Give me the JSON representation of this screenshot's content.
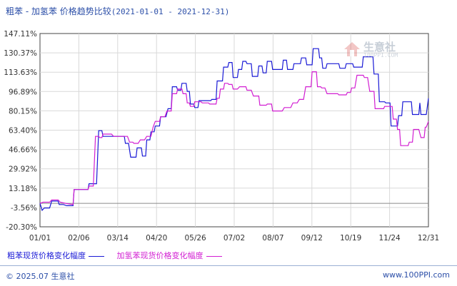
{
  "header": {
    "title": "粗苯 - 加氢苯 价格趋势比较",
    "date_range": "(2021-01-01 - 2021-12-31)"
  },
  "watermark": {
    "name": "生意社",
    "url": "100PPI.COM"
  },
  "footer": {
    "copyright": "© 2025.07 生意社",
    "site": "www.100PPI.com"
  },
  "colors": {
    "series1": "#1a1ad6",
    "series2": "#d21ed2",
    "grid": "#d9d9d9",
    "axis": "#444444",
    "zero": "#8a8a8a"
  },
  "chart_data": {
    "type": "line",
    "title": "粗苯 - 加氢苯 价格趋势比较",
    "x_tick_labels": [
      "01/01",
      "02/06",
      "03/14",
      "04/20",
      "05/26",
      "07/02",
      "08/07",
      "09/12",
      "10/19",
      "11/24",
      "12/31"
    ],
    "y_tick_labels": [
      "147.11%",
      "130.37%",
      "113.63%",
      "96.89%",
      "80.15%",
      "63.40%",
      "46.66%",
      "29.92%",
      "13.18%",
      "-3.56%",
      "-20.30%"
    ],
    "ylim": [
      -20.3,
      147.11
    ],
    "zero_line": 0,
    "grid": true,
    "legend_position": "bottom",
    "x_unit": "day-of-year 2021",
    "series": [
      {
        "name": "粗苯现货价格变化幅度",
        "color": "#1a1ad6",
        "points": [
          [
            1,
            0
          ],
          [
            3,
            -6
          ],
          [
            5,
            -4
          ],
          [
            10,
            -4
          ],
          [
            12,
            2
          ],
          [
            18,
            2
          ],
          [
            19,
            -1
          ],
          [
            23,
            -1
          ],
          [
            26,
            -2
          ],
          [
            32,
            -2
          ],
          [
            33,
            12
          ],
          [
            46,
            12
          ],
          [
            47,
            17
          ],
          [
            54,
            17
          ],
          [
            56,
            63
          ],
          [
            59,
            63
          ],
          [
            60,
            58
          ],
          [
            80,
            58
          ],
          [
            81,
            52
          ],
          [
            84,
            52
          ],
          [
            86,
            40
          ],
          [
            91,
            40
          ],
          [
            92,
            48
          ],
          [
            96,
            48
          ],
          [
            97,
            41
          ],
          [
            100,
            41
          ],
          [
            101,
            55
          ],
          [
            104,
            55
          ],
          [
            105,
            62
          ],
          [
            108,
            62
          ],
          [
            109,
            67
          ],
          [
            113,
            67
          ],
          [
            114,
            75
          ],
          [
            119,
            75
          ],
          [
            121,
            82
          ],
          [
            124,
            82
          ],
          [
            125,
            101
          ],
          [
            129,
            101
          ],
          [
            130,
            98
          ],
          [
            133,
            98
          ],
          [
            134,
            104
          ],
          [
            138,
            104
          ],
          [
            139,
            97
          ],
          [
            141,
            97
          ],
          [
            142,
            86
          ],
          [
            145,
            86
          ],
          [
            146,
            83
          ],
          [
            149,
            83
          ],
          [
            150,
            89
          ],
          [
            161,
            89
          ],
          [
            162,
            90
          ],
          [
            166,
            90
          ],
          [
            167,
            106
          ],
          [
            172,
            106
          ],
          [
            173,
            118
          ],
          [
            177,
            118
          ],
          [
            178,
            122
          ],
          [
            181,
            122
          ],
          [
            182,
            109
          ],
          [
            186,
            109
          ],
          [
            187,
            116
          ],
          [
            190,
            116
          ],
          [
            191,
            123
          ],
          [
            194,
            123
          ],
          [
            195,
            121
          ],
          [
            199,
            121
          ],
          [
            200,
            110
          ],
          [
            205,
            110
          ],
          [
            206,
            119
          ],
          [
            209,
            119
          ],
          [
            210,
            113
          ],
          [
            213,
            113
          ],
          [
            214,
            123
          ],
          [
            218,
            123
          ],
          [
            219,
            116
          ],
          [
            228,
            116
          ],
          [
            229,
            124
          ],
          [
            232,
            124
          ],
          [
            233,
            116
          ],
          [
            238,
            116
          ],
          [
            239,
            121
          ],
          [
            245,
            121
          ],
          [
            246,
            126
          ],
          [
            250,
            126
          ],
          [
            251,
            120
          ],
          [
            256,
            120
          ],
          [
            257,
            134
          ],
          [
            262,
            134
          ],
          [
            263,
            126
          ],
          [
            265,
            126
          ],
          [
            266,
            117
          ],
          [
            269,
            117
          ],
          [
            270,
            121
          ],
          [
            281,
            121
          ],
          [
            282,
            117
          ],
          [
            287,
            117
          ],
          [
            288,
            121
          ],
          [
            294,
            121
          ],
          [
            295,
            118
          ],
          [
            303,
            118
          ],
          [
            304,
            127
          ],
          [
            313,
            127
          ],
          [
            314,
            112
          ],
          [
            318,
            112
          ],
          [
            319,
            88
          ],
          [
            324,
            88
          ],
          [
            325,
            87
          ],
          [
            329,
            87
          ],
          [
            330,
            67
          ],
          [
            336,
            67
          ],
          [
            337,
            76
          ],
          [
            340,
            76
          ],
          [
            341,
            88
          ],
          [
            349,
            88
          ],
          [
            350,
            77
          ],
          [
            356,
            77
          ],
          [
            357,
            87
          ],
          [
            358,
            77
          ],
          [
            363,
            77
          ],
          [
            365,
            91
          ]
        ]
      },
      {
        "name": "加氢苯现货价格变化幅度",
        "color": "#d21ed2",
        "points": [
          [
            1,
            0
          ],
          [
            4,
            1
          ],
          [
            10,
            1
          ],
          [
            12,
            3
          ],
          [
            18,
            3
          ],
          [
            20,
            1
          ],
          [
            25,
            0
          ],
          [
            32,
            -1
          ],
          [
            33,
            12
          ],
          [
            44,
            12
          ],
          [
            46,
            12
          ],
          [
            47,
            15
          ],
          [
            51,
            15
          ],
          [
            53,
            58
          ],
          [
            56,
            58
          ],
          [
            57,
            57
          ],
          [
            59,
            57
          ],
          [
            60,
            60
          ],
          [
            68,
            60
          ],
          [
            70,
            58
          ],
          [
            83,
            58
          ],
          [
            85,
            53
          ],
          [
            88,
            53
          ],
          [
            89,
            52
          ],
          [
            93,
            52
          ],
          [
            95,
            55
          ],
          [
            99,
            55
          ],
          [
            101,
            58
          ],
          [
            104,
            58
          ],
          [
            105,
            58
          ],
          [
            107,
            66
          ],
          [
            109,
            71
          ],
          [
            113,
            71
          ],
          [
            114,
            75
          ],
          [
            118,
            75
          ],
          [
            120,
            80
          ],
          [
            124,
            80
          ],
          [
            125,
            95
          ],
          [
            129,
            95
          ],
          [
            130,
            99
          ],
          [
            134,
            99
          ],
          [
            135,
            95
          ],
          [
            138,
            95
          ],
          [
            139,
            87
          ],
          [
            141,
            87
          ],
          [
            142,
            84
          ],
          [
            145,
            84
          ],
          [
            146,
            88
          ],
          [
            152,
            88
          ],
          [
            153,
            87
          ],
          [
            159,
            87
          ],
          [
            160,
            86
          ],
          [
            166,
            86
          ],
          [
            167,
            91
          ],
          [
            169,
            91
          ],
          [
            170,
            99
          ],
          [
            173,
            99
          ],
          [
            174,
            104
          ],
          [
            177,
            104
          ],
          [
            178,
            103
          ],
          [
            181,
            103
          ],
          [
            182,
            99
          ],
          [
            186,
            99
          ],
          [
            188,
            101
          ],
          [
            194,
            101
          ],
          [
            195,
            98
          ],
          [
            199,
            98
          ],
          [
            201,
            93
          ],
          [
            206,
            93
          ],
          [
            207,
            85
          ],
          [
            213,
            85
          ],
          [
            214,
            86
          ],
          [
            218,
            86
          ],
          [
            219,
            80
          ],
          [
            228,
            80
          ],
          [
            230,
            83
          ],
          [
            236,
            83
          ],
          [
            238,
            87
          ],
          [
            242,
            87
          ],
          [
            244,
            90
          ],
          [
            248,
            90
          ],
          [
            250,
            101
          ],
          [
            255,
            101
          ],
          [
            256,
            114
          ],
          [
            260,
            114
          ],
          [
            261,
            101
          ],
          [
            264,
            101
          ],
          [
            265,
            100
          ],
          [
            268,
            100
          ],
          [
            270,
            95
          ],
          [
            280,
            95
          ],
          [
            281,
            94
          ],
          [
            288,
            94
          ],
          [
            289,
            96
          ],
          [
            292,
            96
          ],
          [
            293,
            100
          ],
          [
            296,
            100
          ],
          [
            298,
            111
          ],
          [
            304,
            111
          ],
          [
            305,
            109
          ],
          [
            308,
            109
          ],
          [
            310,
            97
          ],
          [
            314,
            97
          ],
          [
            315,
            82
          ],
          [
            323,
            82
          ],
          [
            324,
            84
          ],
          [
            331,
            84
          ],
          [
            332,
            73
          ],
          [
            335,
            73
          ],
          [
            336,
            64
          ],
          [
            338,
            64
          ],
          [
            339,
            50
          ],
          [
            346,
            50
          ],
          [
            347,
            53
          ],
          [
            350,
            53
          ],
          [
            351,
            64
          ],
          [
            356,
            64
          ],
          [
            358,
            57
          ],
          [
            361,
            57
          ],
          [
            362,
            66
          ],
          [
            363,
            66
          ],
          [
            365,
            71
          ]
        ]
      }
    ]
  }
}
